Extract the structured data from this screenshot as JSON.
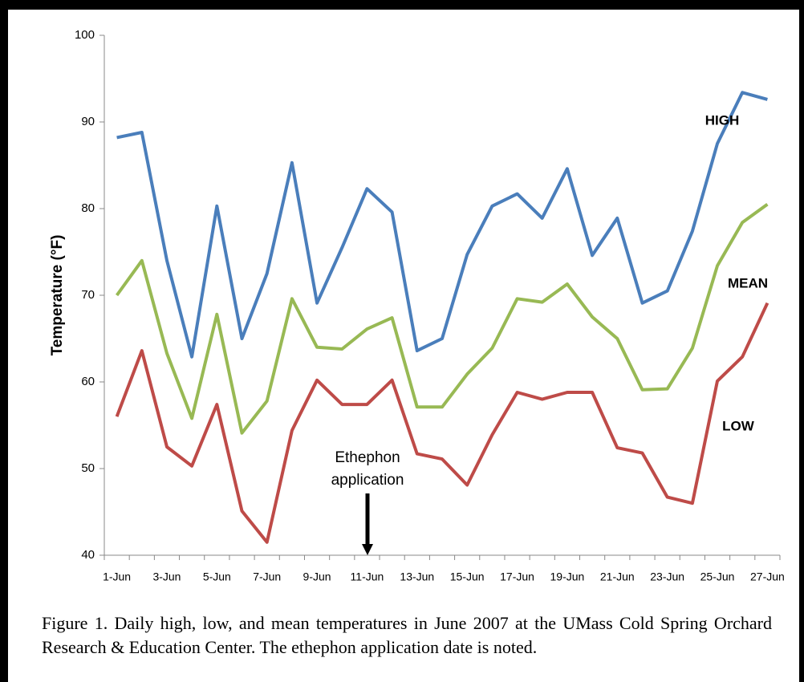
{
  "chart_data": {
    "type": "line",
    "y_label": "Temperature (°F)",
    "annotation": "Ethephon application",
    "caption": "Figure 1.  Daily high, low, and mean temperatures in June 2007 at the UMass Cold Spring Orchard Research & Education Center.  The ethephon application date is noted.",
    "categories": [
      "1-Jun",
      null,
      "3-Jun",
      null,
      "5-Jun",
      null,
      "7-Jun",
      null,
      "9-Jun",
      null,
      "11-Jun",
      null,
      "13-Jun",
      null,
      "15-Jun",
      null,
      "17-Jun",
      null,
      "19-Jun",
      null,
      "21-Jun",
      null,
      "23-Jun",
      null,
      "25-Jun",
      null,
      "27-Jun"
    ],
    "series": [
      {
        "name": "HIGH",
        "color": "#4a7ebb",
        "values": [
          88.2,
          88.8,
          74,
          62.9,
          80.3,
          65,
          72.5,
          85.3,
          69.1,
          75.5,
          82.3,
          79.6,
          63.6,
          65,
          74.7,
          80.3,
          81.7,
          78.9,
          84.6,
          74.6,
          78.9,
          69.1,
          70.5,
          77.4,
          87.5,
          93.4,
          92.6
        ]
      },
      {
        "name": "MEAN",
        "color": "#98b954",
        "values": [
          70,
          74,
          63.3,
          55.8,
          67.8,
          54.1,
          57.8,
          69.6,
          64,
          63.8,
          66.1,
          67.4,
          57.1,
          57.1,
          60.9,
          63.9,
          69.6,
          69.2,
          71.3,
          67.5,
          65,
          59.1,
          59.2,
          63.9,
          73.4,
          78.4,
          80.5
        ]
      },
      {
        "name": "LOW",
        "color": "#be4b48",
        "values": [
          56,
          63.6,
          52.5,
          50.3,
          57.4,
          45.1,
          41.5,
          54.4,
          60.2,
          57.4,
          57.4,
          60.2,
          51.7,
          51.1,
          48.1,
          53.9,
          58.8,
          58,
          58.8,
          58.8,
          52.4,
          51.8,
          46.7,
          46,
          60.1,
          62.9,
          69.1
        ]
      }
    ],
    "ylim": [
      40,
      100
    ],
    "yticks": [
      40,
      50,
      60,
      70,
      80,
      90,
      100
    ]
  }
}
